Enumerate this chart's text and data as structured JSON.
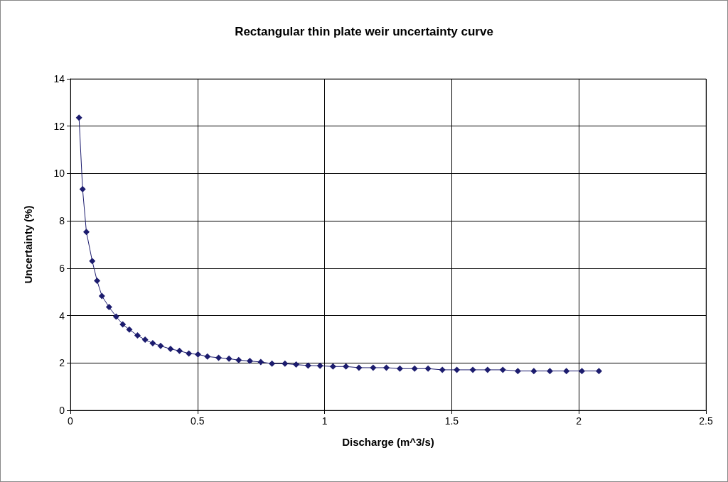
{
  "chart_data": {
    "type": "line",
    "title": "Rectangular thin plate weir uncertainty curve",
    "xlabel": "Discharge (m^3/s)",
    "ylabel": "Uncertainty (%)",
    "x": [
      0.034,
      0.048,
      0.063,
      0.086,
      0.105,
      0.124,
      0.152,
      0.18,
      0.206,
      0.232,
      0.264,
      0.294,
      0.324,
      0.355,
      0.394,
      0.429,
      0.466,
      0.502,
      0.539,
      0.583,
      0.624,
      0.662,
      0.706,
      0.749,
      0.793,
      0.844,
      0.888,
      0.935,
      0.982,
      1.033,
      1.084,
      1.135,
      1.191,
      1.243,
      1.296,
      1.354,
      1.407,
      1.463,
      1.52,
      1.583,
      1.641,
      1.701,
      1.76,
      1.823,
      1.886,
      1.951,
      2.012,
      2.079
    ],
    "series": [
      {
        "color": "#1c1c6e",
        "values": [
          12.36,
          9.34,
          7.53,
          6.3,
          5.47,
          4.83,
          4.36,
          3.96,
          3.63,
          3.41,
          3.16,
          2.98,
          2.83,
          2.72,
          2.59,
          2.51,
          2.4,
          2.36,
          2.27,
          2.22,
          2.18,
          2.12,
          2.08,
          2.04,
          1.97,
          1.97,
          1.93,
          1.89,
          1.88,
          1.85,
          1.85,
          1.8,
          1.8,
          1.8,
          1.76,
          1.76,
          1.76,
          1.71,
          1.71,
          1.71,
          1.71,
          1.71,
          1.66,
          1.66,
          1.66,
          1.66,
          1.66,
          1.66
        ]
      }
    ],
    "xlim": [
      0,
      2.5
    ],
    "xticks": [
      0,
      0.5,
      1,
      1.5,
      2,
      2.5
    ],
    "ylim": [
      0,
      14
    ],
    "yticks": [
      0,
      2,
      4,
      6,
      8,
      10,
      12,
      14
    ],
    "grid": true,
    "marker": "diamond",
    "line_style": "solid"
  }
}
